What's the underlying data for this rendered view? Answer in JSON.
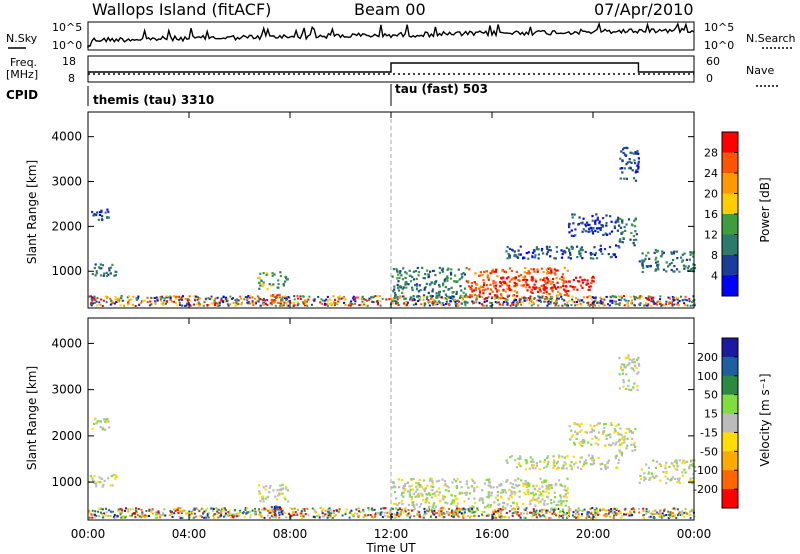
{
  "header": {
    "station": "Wallops Island (fitACF)",
    "beam": "Beam 00",
    "date": "07/Apr/2010"
  },
  "nsky_panel": {
    "left_label": "N.Sky",
    "left_ticks": [
      "10^5",
      "10^0"
    ],
    "right_ticks": [
      "10^5",
      "10^0"
    ],
    "right_label": "N.Search"
  },
  "freq_panel": {
    "left_label_top": "Freq.",
    "left_label_unit": "[MHz]",
    "left_ticks": [
      "18",
      "8"
    ],
    "right_ticks": [
      "60",
      "0"
    ],
    "right_label": "Nave"
  },
  "cpid_panel": {
    "label": "CPID",
    "modes": [
      {
        "name": "themis (tau) 3310",
        "start_hour": 0
      },
      {
        "name": "tau (fast) 503",
        "start_hour": 12
      }
    ]
  },
  "colors": {
    "power_scale": [
      "#0000ff",
      "#1c3c9a",
      "#2c7a6a",
      "#3f9c3f",
      "#ffcc00",
      "#ff9900",
      "#ff5500",
      "#ff0000"
    ],
    "velocity_scale": [
      "#ff0000",
      "#ff6600",
      "#ffaa00",
      "#ffdd00",
      "#bbbbbb",
      "#7fdd40",
      "#2a8a40",
      "#1f5fa0",
      "#1a1aa0"
    ],
    "noise_line": "#000000"
  },
  "chart_data": [
    {
      "type": "heatmap",
      "name": "power",
      "ylabel": "Slant Range [km]",
      "xlabel": "",
      "xlim_hours": [
        0,
        24
      ],
      "ylim": [
        180,
        4550
      ],
      "yticks": [
        "4000",
        "3000",
        "2000",
        "1000"
      ],
      "ytick_values": [
        4000,
        3000,
        2000,
        1000
      ],
      "colorbar_label": "Power [dB]",
      "colorbar_ticks": [
        "28",
        "24",
        "20",
        "16",
        "12",
        "8",
        "4"
      ],
      "colorbar_range": [
        0,
        32
      ],
      "regions": [
        {
          "t0": 0.0,
          "t1": 1.1,
          "r0": 900,
          "r1": 1200,
          "level": 2
        },
        {
          "t0": 0.1,
          "t1": 0.8,
          "r0": 2150,
          "r1": 2400,
          "level": 1
        },
        {
          "t0": 6.7,
          "t1": 7.9,
          "r0": 600,
          "r1": 1000,
          "level": 3
        },
        {
          "t0": 7.2,
          "t1": 7.7,
          "r0": 300,
          "r1": 500,
          "level": 6
        },
        {
          "t0": 12.0,
          "t1": 15.0,
          "r0": 300,
          "r1": 1100,
          "level": 2
        },
        {
          "t0": 15.0,
          "t1": 19.0,
          "r0": 400,
          "r1": 1100,
          "level": 6
        },
        {
          "t0": 16.0,
          "t1": 20.0,
          "r0": 600,
          "r1": 900,
          "level": 7
        },
        {
          "t0": 16.5,
          "t1": 21.0,
          "r0": 1300,
          "r1": 1600,
          "level": 1
        },
        {
          "t0": 19.0,
          "t1": 21.0,
          "r0": 1800,
          "r1": 2300,
          "level": 1
        },
        {
          "t0": 21.0,
          "t1": 21.7,
          "r0": 1600,
          "r1": 2200,
          "level": 2
        },
        {
          "t0": 21.0,
          "t1": 21.8,
          "r0": 3000,
          "r1": 3800,
          "level": 1
        },
        {
          "t0": 21.8,
          "t1": 24.0,
          "r0": 1000,
          "r1": 1500,
          "level": 2
        }
      ]
    },
    {
      "type": "heatmap",
      "name": "velocity",
      "ylabel": "Slant Range [km]",
      "xlabel": "Time UT",
      "xlim_hours": [
        0,
        24
      ],
      "ylim": [
        180,
        4550
      ],
      "xticks": [
        "00:00",
        "04:00",
        "08:00",
        "12:00",
        "16:00",
        "20:00",
        "00:00"
      ],
      "yticks": [
        "4000",
        "3000",
        "2000",
        "1000"
      ],
      "ytick_values": [
        4000,
        3000,
        2000,
        1000
      ],
      "colorbar_label": "Velocity [m s⁻¹]",
      "colorbar_ticks": [
        "200",
        "100",
        "50",
        "15",
        "-15",
        "-50",
        "-100",
        "-200"
      ],
      "colorbar_range": [
        -250,
        250
      ],
      "regions": [
        {
          "t0": 0.0,
          "t1": 1.1,
          "r0": 900,
          "r1": 1200,
          "level": 4
        },
        {
          "t0": 0.1,
          "t1": 0.8,
          "r0": 2150,
          "r1": 2400,
          "level": 4
        },
        {
          "t0": 6.7,
          "t1": 7.9,
          "r0": 600,
          "r1": 1000,
          "level": 4
        },
        {
          "t0": 7.2,
          "t1": 7.7,
          "r0": 300,
          "r1": 500,
          "level": 8
        },
        {
          "t0": 12.0,
          "t1": 15.0,
          "r0": 300,
          "r1": 1100,
          "level": 4
        },
        {
          "t0": 15.0,
          "t1": 19.0,
          "r0": 400,
          "r1": 1100,
          "level": 4
        },
        {
          "t0": 16.5,
          "t1": 21.0,
          "r0": 1300,
          "r1": 1600,
          "level": 4
        },
        {
          "t0": 19.0,
          "t1": 21.0,
          "r0": 1800,
          "r1": 2300,
          "level": 4
        },
        {
          "t0": 21.0,
          "t1": 21.7,
          "r0": 1600,
          "r1": 2200,
          "level": 4
        },
        {
          "t0": 21.0,
          "t1": 21.8,
          "r0": 3000,
          "r1": 3800,
          "level": 4
        },
        {
          "t0": 21.8,
          "t1": 24.0,
          "r0": 1000,
          "r1": 1500,
          "level": 4
        }
      ]
    }
  ]
}
